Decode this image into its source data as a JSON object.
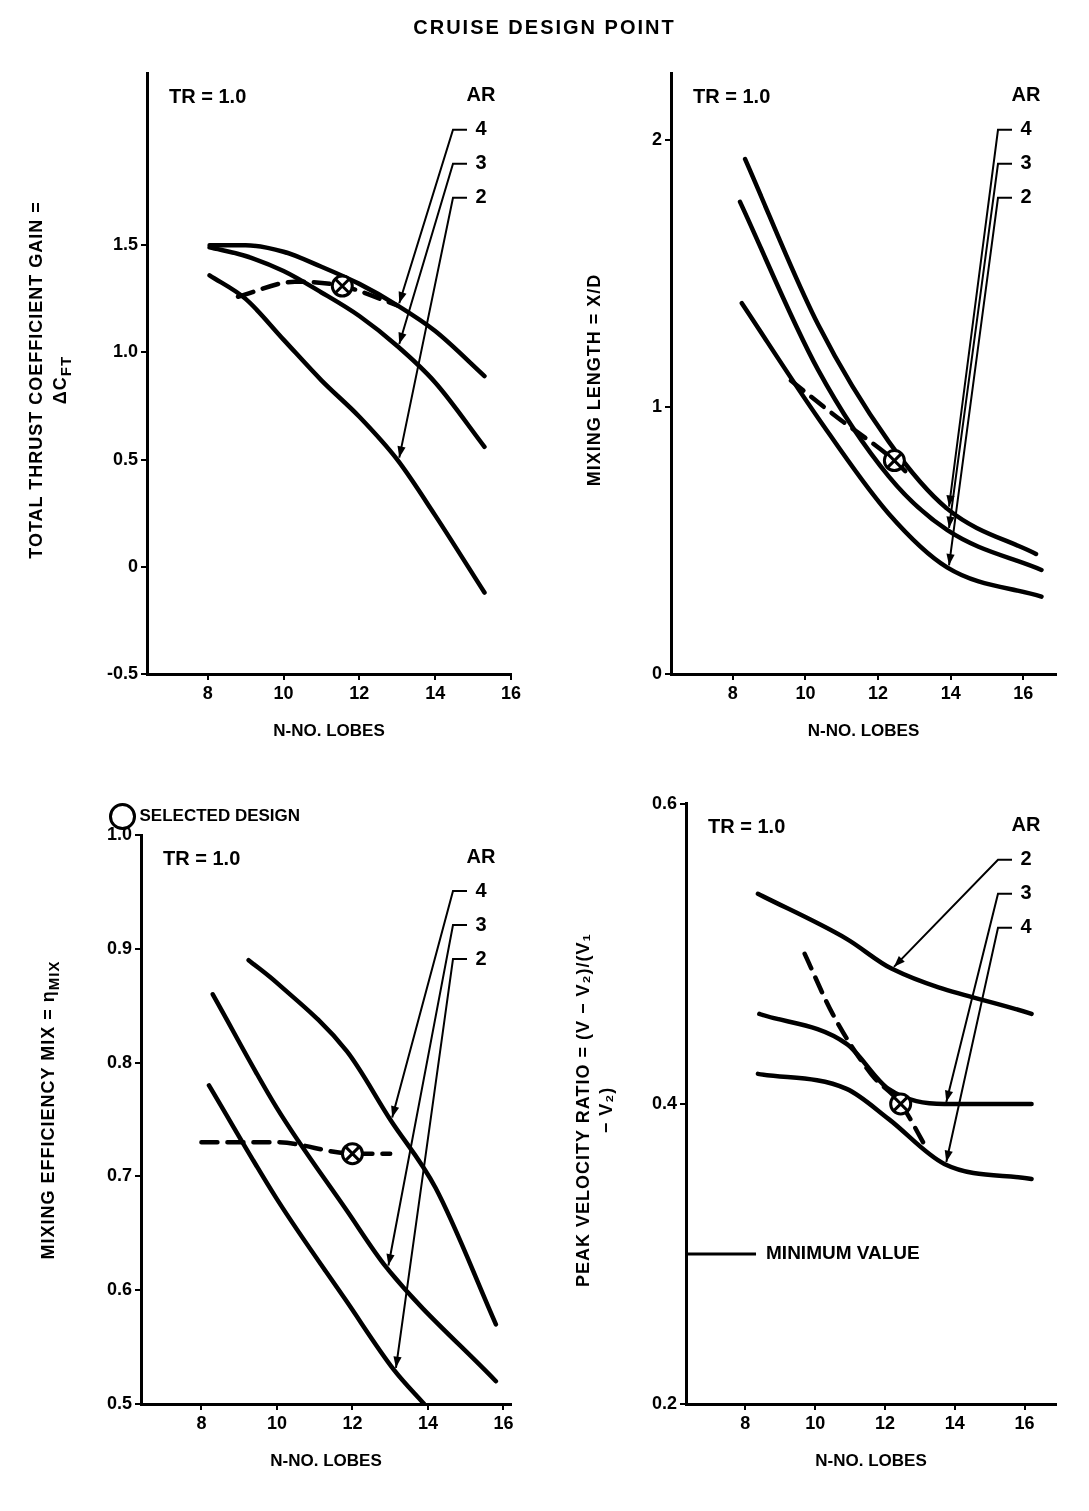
{
  "chart_data": [
    {
      "type": "line",
      "title": "CRUISE DESIGN POINT",
      "xlabel": "N-NO. LOBES",
      "ylabel": "TOTAL THRUST COEFFICIENT GAIN = ΔC$_{FT}$",
      "legend_title": "AR",
      "annotations": [
        "TR = 1.0"
      ],
      "xlim": [
        6.4,
        16
      ],
      "xticks": [
        8,
        10,
        12,
        14,
        16
      ],
      "ylim": [
        -0.5,
        2.3
      ],
      "yticks": [
        -0.5,
        0,
        0.5,
        {
          "value": 1,
          "label": "1.0"
        },
        1.5
      ],
      "line_style": "solid",
      "series": [
        {
          "name": "4",
          "color": "#000000",
          "x": [
            8.05,
            9,
            10,
            11,
            12,
            13,
            14,
            15.3
          ],
          "values": [
            1.5,
            1.5,
            1.47,
            1.4,
            1.32,
            1.22,
            1.1,
            0.89
          ]
        },
        {
          "name": "3",
          "color": "#000000",
          "x": [
            8.05,
            9,
            10,
            11,
            12,
            13,
            14,
            15.3
          ],
          "values": [
            1.49,
            1.45,
            1.38,
            1.28,
            1.17,
            1.03,
            0.86,
            0.56
          ]
        },
        {
          "name": "2",
          "color": "#000000",
          "x": [
            8.05,
            9,
            10,
            11,
            12,
            13,
            14,
            15.3
          ],
          "values": [
            1.36,
            1.25,
            1.06,
            0.87,
            0.7,
            0.5,
            0.24,
            -0.12
          ]
        },
        {
          "color": "#000000",
          "line_style": "dashed",
          "x": [
            8.8,
            10.3,
            11.55,
            13
          ],
          "values": [
            1.26,
            1.33,
            1.31,
            1.22
          ]
        },
        {
          "type": "scatter",
          "marker": "circle",
          "color": "#000000",
          "x": [
            11.55
          ],
          "values": [
            1.31
          ]
        }
      ]
    },
    {
      "type": "line",
      "xlabel": "N-NO. LOBES",
      "ylabel": "MIXING LENGTH = X/D",
      "legend_title": "AR",
      "annotations": [
        "TR = 1.0"
      ],
      "xlim": [
        6.3,
        16.9
      ],
      "xticks": [
        8,
        10,
        12,
        14,
        16
      ],
      "ylim": [
        0,
        2.25
      ],
      "yticks": [
        0,
        1,
        2
      ],
      "line_style": "solid",
      "series": [
        {
          "name": "4",
          "color": "#000000",
          "x": [
            8.34,
            10.35,
            12.3,
            13.9,
            16.35
          ],
          "values": [
            1.93,
            1.31,
            0.87,
            0.62,
            0.45
          ]
        },
        {
          "name": "3",
          "color": "#000000",
          "x": [
            8.2,
            10.35,
            12.3,
            13.9,
            16.5
          ],
          "values": [
            1.77,
            1.14,
            0.74,
            0.54,
            0.39
          ]
        },
        {
          "name": "2",
          "color": "#000000",
          "x": [
            8.25,
            10.35,
            12.3,
            13.9,
            16.5
          ],
          "values": [
            1.39,
            0.96,
            0.6,
            0.4,
            0.29
          ]
        },
        {
          "color": "#000000",
          "line_style": "dashed",
          "x": [
            9.6,
            10.8,
            12.45,
            12.9
          ],
          "values": [
            1.1,
            0.97,
            0.8,
            0.74
          ]
        },
        {
          "type": "scatter",
          "marker": "circle",
          "color": "#000000",
          "x": [
            12.45
          ],
          "values": [
            0.8
          ]
        }
      ]
    },
    {
      "type": "line",
      "xlabel": "N-NO. LOBES",
      "ylabel": "MIXING EFFICIENCY MIX = η$_{MIX}$",
      "legend_title": "AR",
      "legend": "top",
      "annotations": [
        "TR = 1.0"
      ],
      "xlim": [
        6.4,
        16.2
      ],
      "xticks": [
        8,
        10,
        12,
        14,
        16
      ],
      "ylim": [
        0.5,
        1
      ],
      "yticks": [
        0.5,
        0.6,
        0.7,
        0.8,
        0.9,
        {
          "value": 1,
          "label": "1.0"
        }
      ],
      "line_style": "solid",
      "series": [
        {
          "name": "4",
          "color": "#000000",
          "x": [
            9.25,
            10,
            11.85,
            13,
            14.2,
            15.8
          ],
          "values": [
            0.89,
            0.87,
            0.81,
            0.75,
            0.69,
            0.57
          ]
        },
        {
          "name": "3",
          "color": "#000000",
          "x": [
            8.3,
            10,
            11.85,
            12.9,
            15.8
          ],
          "values": [
            0.86,
            0.76,
            0.67,
            0.62,
            0.52
          ]
        },
        {
          "name": "2",
          "color": "#000000",
          "x": [
            8.2,
            10,
            11.85,
            13.1,
            13.9
          ],
          "values": [
            0.78,
            0.68,
            0.59,
            0.53,
            0.5
          ]
        },
        {
          "color": "#000000",
          "line_style": "dashed",
          "x": [
            8,
            10,
            12,
            13
          ],
          "values": [
            0.73,
            0.73,
            0.72,
            0.72
          ]
        },
        {
          "type": "scatter",
          "name": "SELECTED DESIGN",
          "marker": "circle",
          "color": "#000000",
          "x": [
            12
          ],
          "values": [
            0.72
          ]
        }
      ]
    },
    {
      "type": "line",
      "xlabel": "N-NO. LOBES",
      "ylabel": "PEAK VELOCITY RATIO = (V − V₂)/(V₁ − V₂)",
      "legend_title": "AR",
      "annotations": [
        "TR = 1.0"
      ],
      "xlim": [
        6.3,
        16.9
      ],
      "xticks": [
        8,
        10,
        12,
        14,
        16
      ],
      "ylim": [
        0.2,
        0.6
      ],
      "yticks": [
        0.2,
        0.4,
        0.6
      ],
      "line_style": "solid",
      "ref_lines": [
        {
          "axis": "y",
          "value": 0.3,
          "label": "MINIMUM VALUE"
        }
      ],
      "series": [
        {
          "name": "2",
          "color": "#000000",
          "x": [
            8.36,
            10.9,
            12.2,
            16.2
          ],
          "values": [
            0.54,
            0.51,
            0.49,
            0.46
          ]
        },
        {
          "name": "3",
          "color": "#000000",
          "x": [
            8.4,
            10.9,
            12.1,
            13.7,
            16.2
          ],
          "values": [
            0.46,
            0.44,
            0.41,
            0.4,
            0.4
          ]
        },
        {
          "name": "4",
          "color": "#000000",
          "x": [
            8.36,
            10.9,
            12.1,
            13.7,
            16.2
          ],
          "values": [
            0.42,
            0.41,
            0.39,
            0.36,
            0.35
          ]
        },
        {
          "color": "#000000",
          "line_style": "dashed",
          "x": [
            9.7,
            10.5,
            11.6,
            12.45,
            13.2
          ],
          "values": [
            0.5,
            0.46,
            0.42,
            0.4,
            0.37
          ]
        },
        {
          "type": "scatter",
          "marker": "circle",
          "color": "#000000",
          "x": [
            12.45
          ],
          "values": [
            0.4
          ]
        }
      ]
    }
  ]
}
